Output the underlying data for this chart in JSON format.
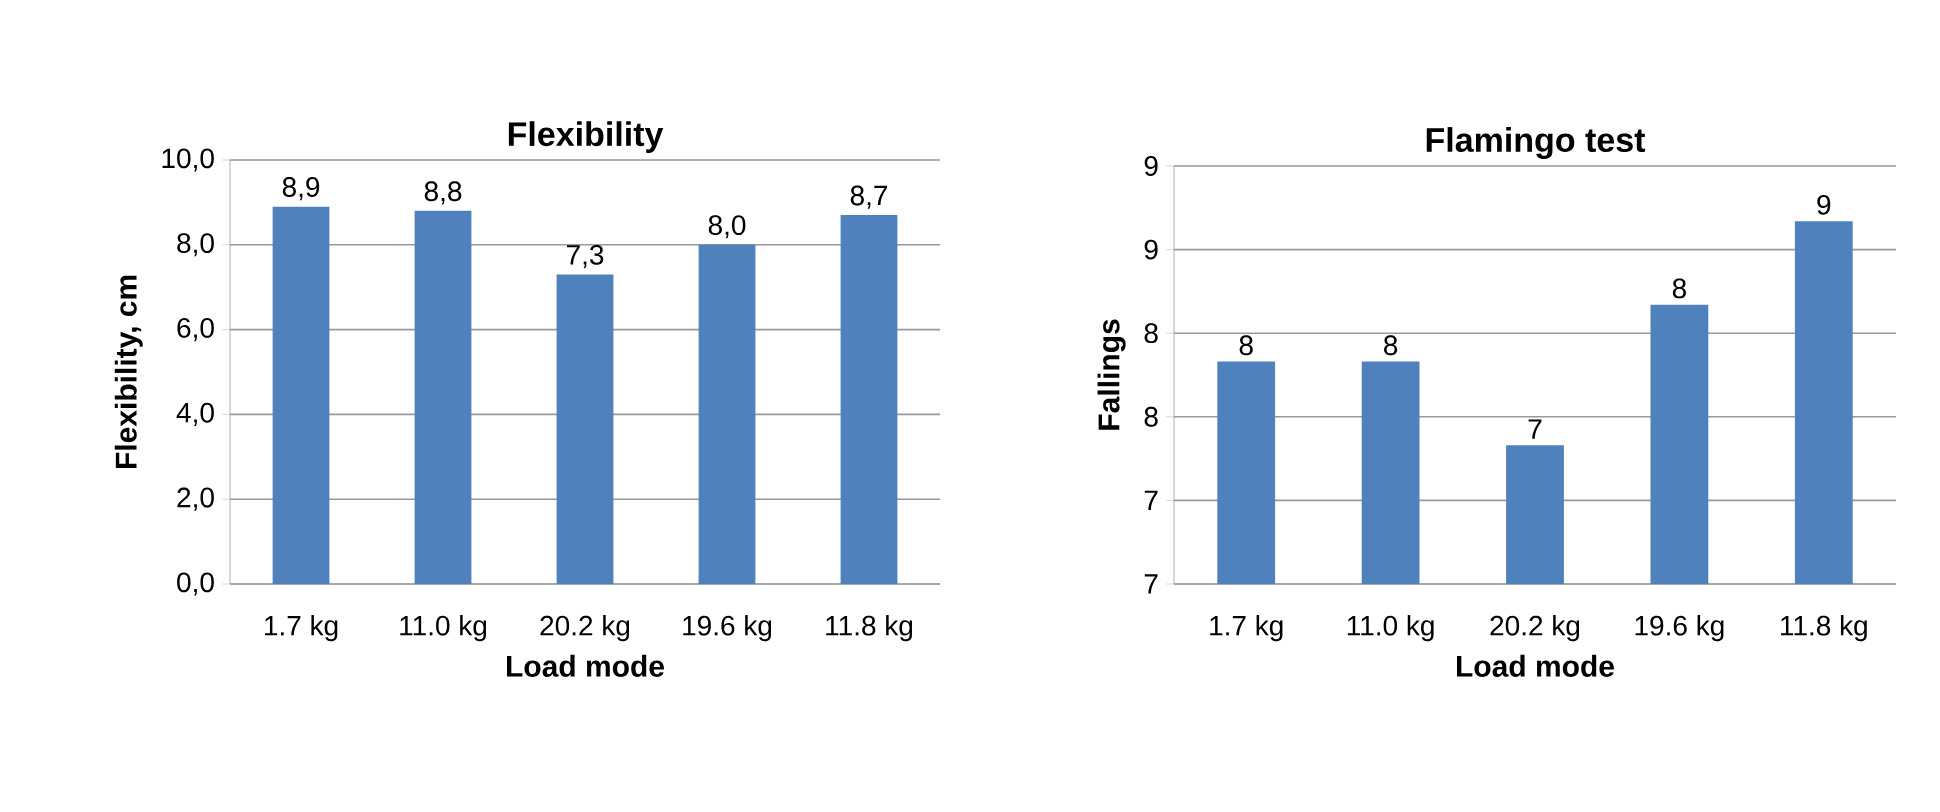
{
  "chart_data": [
    {
      "type": "bar",
      "title": "Flexibility",
      "xlabel": "Load mode",
      "ylabel": "Flexibility, cm",
      "categories": [
        "1.7 kg",
        "11.0 kg",
        "20.2 kg",
        "19.6 kg",
        "11.8 kg"
      ],
      "values": [
        8.9,
        8.8,
        7.3,
        8.0,
        8.7
      ],
      "value_labels": [
        "8,9",
        "8,8",
        "7,3",
        "8,0",
        "8,7"
      ],
      "color": "#4f81bd",
      "ylim": [
        0,
        10
      ],
      "yticks": [
        {
          "value": 0,
          "label": "0,0"
        },
        {
          "value": 2,
          "label": "2,0"
        },
        {
          "value": 4,
          "label": "4,0"
        },
        {
          "value": 6,
          "label": "6,0"
        },
        {
          "value": 8,
          "label": "8,0"
        },
        {
          "value": 10,
          "label": "10,0"
        }
      ],
      "grid": "y"
    },
    {
      "type": "bar",
      "title": "Flamingo test",
      "xlabel": "Load mode",
      "ylabel": "Fallings",
      "categories": [
        "1.7 kg",
        "11.0 kg",
        "20.2 kg",
        "19.6 kg",
        "11.8 kg"
      ],
      "values": [
        7.83,
        7.83,
        7.33,
        8.17,
        8.67
      ],
      "value_labels": [
        "8",
        "8",
        "7",
        "8",
        "9"
      ],
      "color": "#4f81bd",
      "ylim": [
        6.5,
        9
      ],
      "yticks": [
        {
          "value": 6.5,
          "label": "7"
        },
        {
          "value": 7,
          "label": "7"
        },
        {
          "value": 7.5,
          "label": "8"
        },
        {
          "value": 8,
          "label": "8"
        },
        {
          "value": 8.5,
          "label": "9"
        },
        {
          "value": 9,
          "label": "9"
        }
      ],
      "grid": "y"
    }
  ]
}
